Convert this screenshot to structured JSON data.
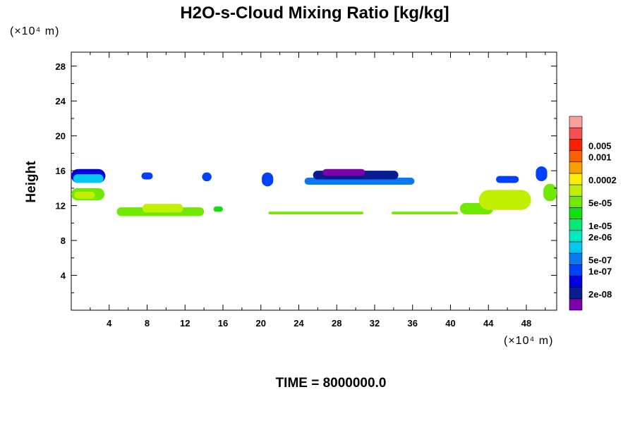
{
  "chart_data": {
    "type": "heatmap",
    "title": "H2O-s-Cloud Mixing Ratio [kg/kg]",
    "ylabel": "Height",
    "x_unit_label": "(×10⁴ m)",
    "y_unit_label": "(×10⁴ m)",
    "time_label": "TIME = 8000000.0",
    "xlim": [
      0,
      51.2
    ],
    "ylim": [
      0,
      29.6
    ],
    "x_ticks": [
      {
        "value": 4,
        "label": "4"
      },
      {
        "value": 8,
        "label": "8"
      },
      {
        "value": 12,
        "label": "12"
      },
      {
        "value": 16,
        "label": "16"
      },
      {
        "value": 20,
        "label": "20"
      },
      {
        "value": 24,
        "label": "24"
      },
      {
        "value": 28,
        "label": "28"
      },
      {
        "value": 32,
        "label": "32"
      },
      {
        "value": 36,
        "label": "36"
      },
      {
        "value": 40,
        "label": "40"
      },
      {
        "value": 44,
        "label": "44"
      },
      {
        "value": 48,
        "label": "48"
      }
    ],
    "y_ticks": [
      {
        "value": 4,
        "label": "4"
      },
      {
        "value": 8,
        "label": "8"
      },
      {
        "value": 12,
        "label": "12"
      },
      {
        "value": 16,
        "label": "16"
      },
      {
        "value": 20,
        "label": "20"
      },
      {
        "value": 24,
        "label": "24"
      },
      {
        "value": 28,
        "label": "28"
      }
    ],
    "colorbar": {
      "colors": [
        "#7a00a8",
        "#0a1a90",
        "#0000e0",
        "#0040ff",
        "#0a78f0",
        "#00c8f0",
        "#00e8c0",
        "#00e878",
        "#10e010",
        "#70e800",
        "#c0f000",
        "#f8f000",
        "#f8a000",
        "#f86000",
        "#f82000",
        "#f85050",
        "#f8a0a0"
      ],
      "labels": [
        {
          "boundary": 1,
          "text": "2e-08"
        },
        {
          "boundary": 3,
          "text": "1e-07"
        },
        {
          "boundary": 4,
          "text": "5e-07"
        },
        {
          "boundary": 6,
          "text": "2e-06"
        },
        {
          "boundary": 7,
          "text": "1e-05"
        },
        {
          "boundary": 9,
          "text": "5e-05"
        },
        {
          "boundary": 11,
          "text": "0.0002"
        },
        {
          "boundary": 13,
          "text": "0.001"
        },
        {
          "boundary": 14,
          "text": "0.005"
        }
      ]
    },
    "cloud_regions": [
      {
        "x0": 0.0,
        "x1": 3.6,
        "y0": 14.6,
        "y1": 16.2,
        "color": "#0000e0"
      },
      {
        "x0": 0.2,
        "x1": 3.4,
        "y0": 14.6,
        "y1": 15.6,
        "color": "#00c8f0"
      },
      {
        "x0": 0.0,
        "x1": 3.5,
        "y0": 12.6,
        "y1": 14.0,
        "color": "#70e800"
      },
      {
        "x0": 0.3,
        "x1": 2.5,
        "y0": 12.8,
        "y1": 13.6,
        "color": "#c0f000"
      },
      {
        "x0": 4.8,
        "x1": 14.0,
        "y0": 10.8,
        "y1": 11.8,
        "color": "#70e800"
      },
      {
        "x0": 7.5,
        "x1": 11.8,
        "y0": 11.2,
        "y1": 12.2,
        "color": "#c0f000"
      },
      {
        "x0": 15.0,
        "x1": 16.0,
        "y0": 11.3,
        "y1": 11.9,
        "color": "#10e010"
      },
      {
        "x0": 20.8,
        "x1": 30.8,
        "y0": 11.0,
        "y1": 11.3,
        "color": "#70e800"
      },
      {
        "x0": 33.8,
        "x1": 40.8,
        "y0": 11.0,
        "y1": 11.3,
        "color": "#70e800"
      },
      {
        "x0": 7.4,
        "x1": 8.6,
        "y0": 15.0,
        "y1": 15.8,
        "color": "#0040ff"
      },
      {
        "x0": 13.8,
        "x1": 14.8,
        "y0": 14.8,
        "y1": 15.8,
        "color": "#0040ff"
      },
      {
        "x0": 20.1,
        "x1": 21.3,
        "y0": 14.2,
        "y1": 15.8,
        "color": "#0040ff"
      },
      {
        "x0": 24.6,
        "x1": 36.2,
        "y0": 14.4,
        "y1": 15.2,
        "color": "#0a78f0"
      },
      {
        "x0": 25.5,
        "x1": 34.5,
        "y0": 15.0,
        "y1": 16.0,
        "color": "#0a1a90"
      },
      {
        "x0": 26.5,
        "x1": 31.0,
        "y0": 15.4,
        "y1": 16.2,
        "color": "#7a00a8"
      },
      {
        "x0": 41.0,
        "x1": 44.5,
        "y0": 11.0,
        "y1": 12.3,
        "color": "#70e800"
      },
      {
        "x0": 43.0,
        "x1": 48.5,
        "y0": 11.5,
        "y1": 13.8,
        "color": "#c0f000"
      },
      {
        "x0": 44.8,
        "x1": 47.2,
        "y0": 14.6,
        "y1": 15.4,
        "color": "#0040ff"
      },
      {
        "x0": 49.0,
        "x1": 50.2,
        "y0": 14.8,
        "y1": 16.5,
        "color": "#0040ff"
      },
      {
        "x0": 49.8,
        "x1": 51.2,
        "y0": 12.5,
        "y1": 14.5,
        "color": "#70e800"
      }
    ]
  }
}
